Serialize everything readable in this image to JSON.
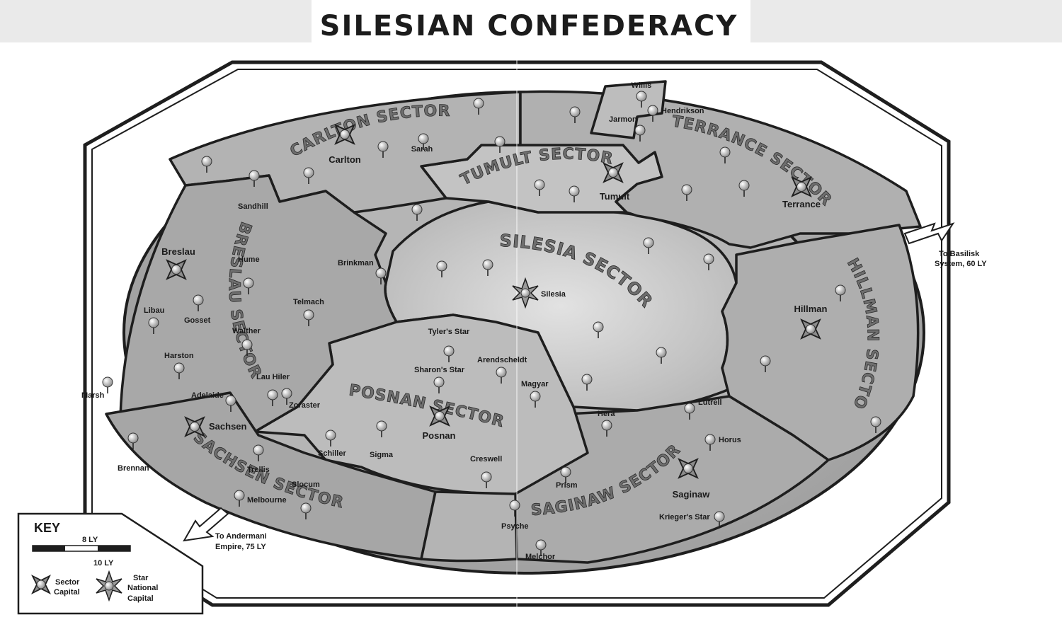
{
  "title": "SILESIAN CONFEDERACY",
  "sectors": {
    "carlton": "CARLTON SECTOR",
    "tumult": "TUMULT SECTOR",
    "terrance": "TERRANCE SECTOR",
    "breslau": "BRESLAU SECTOR",
    "silesia": "SILESIA SECTOR",
    "hillman": "HILLMAN SECTOR",
    "posnan": "POSNAN SECTOR",
    "sachsen": "SACHSEN SECTOR",
    "saginaw": "SAGINAW SECTOR"
  },
  "capitals": {
    "carlton": "Carlton",
    "tumult": "Tumult",
    "terrance": "Terrance",
    "breslau": "Breslau",
    "hillman": "Hillman",
    "posnan": "Posnan",
    "sachsen": "Sachsen",
    "saginaw": "Saginaw",
    "silesia": "Silesia"
  },
  "systems": {
    "sarah": "Sarah",
    "willis": "Willis",
    "hendrikson": "Hendrikson",
    "jarmon": "Jarmon",
    "sandhill": "Sandhill",
    "hume": "Hume",
    "telmach": "Telmach",
    "libau": "Libau",
    "gosset": "Gosset",
    "walther": "Walther",
    "harston": "Harston",
    "lauhiler": "Lau Hiler",
    "brinkman": "Brinkman",
    "tylersstar": "Tyler's Star",
    "arendscheldt": "Arendscheldt",
    "sharonsstar": "Sharon's Star",
    "magyar": "Magyar",
    "marsh": "Marsh",
    "adelaide": "Adelaide",
    "zoraster": "Zoraster",
    "schiller": "Schiller",
    "sigma": "Sigma",
    "creswell": "Creswell",
    "brennan": "Brennan",
    "trellis": "Trellis",
    "slocum": "Slocum",
    "melbourne": "Melbourne",
    "psyche": "Psyche",
    "melchor": "Melchor",
    "prism": "Prism",
    "hera": "Hera",
    "lutrell": "Lutrell",
    "horus": "Horus",
    "kriegersstar": "Krieger's Star"
  },
  "routes": {
    "basilisk_1": "To Basilisk",
    "basilisk_2": "System, 60 LY",
    "andermani_1": "To Andermani",
    "andermani_2": "Empire, 75 LY"
  },
  "key": {
    "title": "KEY",
    "scale_1": "8 LY",
    "scale_2": "10 LY",
    "sector_capital_1": "Sector",
    "sector_capital_2": "Capital",
    "star_national_1": "Star",
    "star_national_2": "National",
    "star_national_3": "Capital"
  },
  "colors": {
    "outer_ring": "#a9a9a9",
    "middle_ring": "#b9b9b9",
    "inner_core": "#c9c9c9",
    "border": "#1e1e1e",
    "background": "#ffffff"
  }
}
